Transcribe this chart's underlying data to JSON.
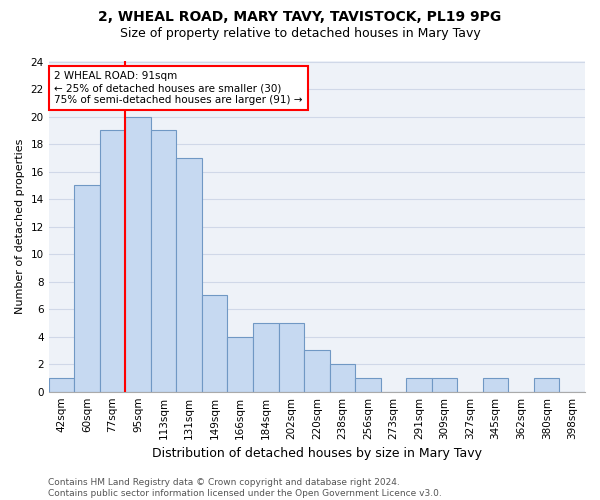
{
  "title1": "2, WHEAL ROAD, MARY TAVY, TAVISTOCK, PL19 9PG",
  "title2": "Size of property relative to detached houses in Mary Tavy",
  "xlabel": "Distribution of detached houses by size in Mary Tavy",
  "ylabel": "Number of detached properties",
  "bin_labels": [
    "42sqm",
    "60sqm",
    "77sqm",
    "95sqm",
    "113sqm",
    "131sqm",
    "149sqm",
    "166sqm",
    "184sqm",
    "202sqm",
    "220sqm",
    "238sqm",
    "256sqm",
    "273sqm",
    "291sqm",
    "309sqm",
    "327sqm",
    "345sqm",
    "362sqm",
    "380sqm",
    "398sqm"
  ],
  "bar_heights": [
    1,
    15,
    19,
    20,
    19,
    17,
    7,
    4,
    5,
    5,
    3,
    2,
    1,
    0,
    1,
    1,
    0,
    1,
    0,
    1,
    0
  ],
  "bar_color": "#c6d9f1",
  "bar_edge_color": "#7098c4",
  "annotation_text": "2 WHEAL ROAD: 91sqm\n← 25% of detached houses are smaller (30)\n75% of semi-detached houses are larger (91) →",
  "annotation_box_color": "white",
  "annotation_box_edge_color": "red",
  "vline_color": "red",
  "vline_x": 2.5,
  "ylim": [
    0,
    24
  ],
  "yticks": [
    0,
    2,
    4,
    6,
    8,
    10,
    12,
    14,
    16,
    18,
    20,
    22,
    24
  ],
  "grid_color": "#d0d8e8",
  "background_color": "#eef2f8",
  "title1_fontsize": 10,
  "title2_fontsize": 9,
  "xlabel_fontsize": 9,
  "ylabel_fontsize": 8,
  "tick_fontsize": 7.5,
  "annot_fontsize": 7.5,
  "footer_text": "Contains HM Land Registry data © Crown copyright and database right 2024.\nContains public sector information licensed under the Open Government Licence v3.0.",
  "footer_fontsize": 6.5
}
